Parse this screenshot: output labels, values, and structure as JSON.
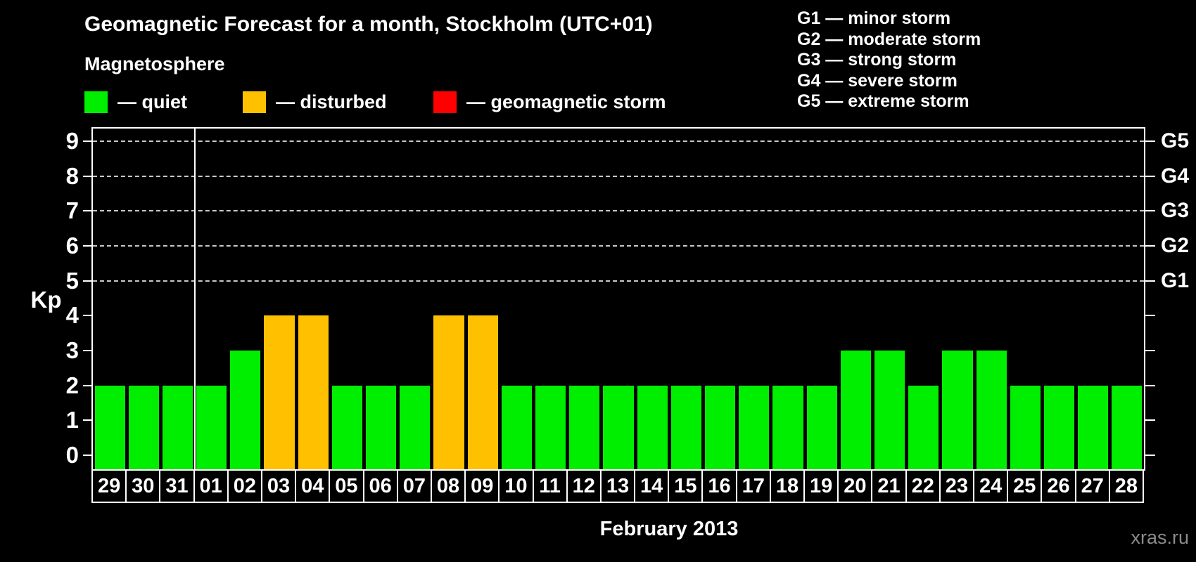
{
  "title": "Geomagnetic Forecast for a month, Stockholm (UTC+01)",
  "subtitle": "Magnetosphere",
  "legend": {
    "items": [
      {
        "key": "quiet",
        "label": "— quiet",
        "color": "#00ee00"
      },
      {
        "key": "disturbed",
        "label": "— disturbed",
        "color": "#ffc000"
      },
      {
        "key": "storm",
        "label": "— geomagnetic storm",
        "color": "#ff0000"
      }
    ]
  },
  "storm_scale": [
    "G1 — minor storm",
    "G2 — moderate storm",
    "G3 — strong storm",
    "G4 — severe storm",
    "G5 — extreme storm"
  ],
  "chart_data": {
    "type": "bar",
    "title": "Geomagnetic Forecast for a month, Stockholm (UTC+01)",
    "xlabel": "February 2013",
    "ylabel": "Kp",
    "ylim": [
      0,
      9
    ],
    "y_ticks": [
      0,
      1,
      2,
      3,
      4,
      5,
      6,
      7,
      8,
      9
    ],
    "grid": "horizontal dashed lines at Kp 5-9 only",
    "legend_position": "top",
    "categories": [
      "29",
      "30",
      "31",
      "01",
      "02",
      "03",
      "04",
      "05",
      "06",
      "07",
      "08",
      "09",
      "10",
      "11",
      "12",
      "13",
      "14",
      "15",
      "16",
      "17",
      "18",
      "19",
      "20",
      "21",
      "22",
      "23",
      "24",
      "25",
      "26",
      "27",
      "28"
    ],
    "values": [
      2,
      2,
      2,
      2,
      3,
      4,
      4,
      2,
      2,
      2,
      4,
      4,
      2,
      2,
      2,
      2,
      2,
      2,
      2,
      2,
      2,
      2,
      3,
      3,
      2,
      3,
      3,
      2,
      2,
      2,
      2
    ],
    "statuses": [
      "quiet",
      "quiet",
      "quiet",
      "quiet",
      "quiet",
      "disturbed",
      "disturbed",
      "quiet",
      "quiet",
      "quiet",
      "disturbed",
      "disturbed",
      "quiet",
      "quiet",
      "quiet",
      "quiet",
      "quiet",
      "quiet",
      "quiet",
      "quiet",
      "quiet",
      "quiet",
      "quiet",
      "quiet",
      "quiet",
      "quiet",
      "quiet",
      "quiet",
      "quiet",
      "quiet",
      "quiet"
    ],
    "status_colors": {
      "quiet": "#00ee00",
      "disturbed": "#ffc000",
      "storm": "#ff0000"
    },
    "month_separator_after_category": "31",
    "right_axis": [
      {
        "kp": 5,
        "label": "G1"
      },
      {
        "kp": 6,
        "label": "G2"
      },
      {
        "kp": 7,
        "label": "G3"
      },
      {
        "kp": 8,
        "label": "G4"
      },
      {
        "kp": 9,
        "label": "G5"
      }
    ]
  },
  "watermark": "xras.ru"
}
